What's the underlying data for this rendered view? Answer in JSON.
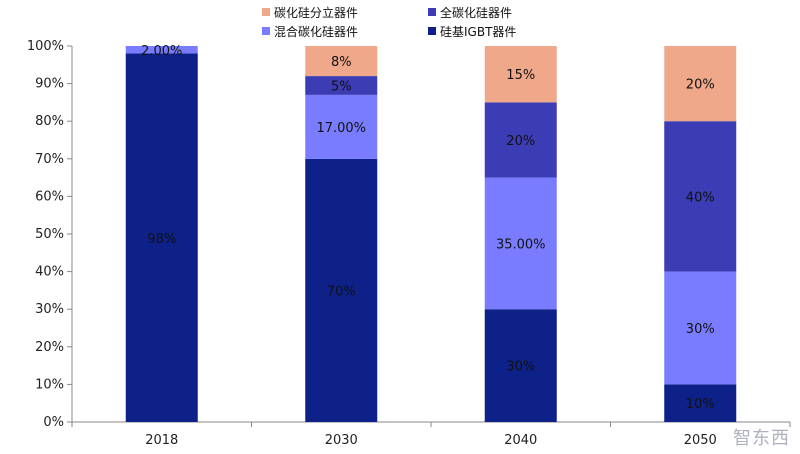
{
  "chart_data": {
    "type": "bar",
    "stacked": true,
    "categories": [
      "2018",
      "2030",
      "2040",
      "2050"
    ],
    "series": [
      {
        "name": "硅基IGBT器件",
        "color": "#0d2189",
        "values": [
          98,
          70,
          30,
          10
        ],
        "labels": [
          "98%",
          "70%",
          "30%",
          "10%"
        ]
      },
      {
        "name": "混合碳化硅器件",
        "color": "#7a7cff",
        "values": [
          2,
          17,
          35,
          30
        ],
        "labels": [
          "2.00%",
          "17.00%",
          "35.00%",
          "30%"
        ]
      },
      {
        "name": "全碳化硅器件",
        "color": "#3c3cb4",
        "values": [
          0,
          5,
          20,
          40
        ],
        "labels": [
          "",
          "5%",
          "20%",
          "40%"
        ]
      },
      {
        "name": "碳化硅分立器件",
        "color": "#f0a88a",
        "values": [
          0,
          8,
          15,
          20
        ],
        "labels": [
          "",
          "8%",
          "15%",
          "20%"
        ]
      }
    ],
    "ylim": [
      0,
      100
    ],
    "yticks": [
      "0%",
      "10%",
      "20%",
      "30%",
      "40%",
      "50%",
      "60%",
      "70%",
      "80%",
      "90%",
      "100%"
    ],
    "legend": {
      "placement": "top",
      "order": [
        "碳化硅分立器件",
        "全碳化硅器件",
        "混合碳化硅器件",
        "硅基IGBT器件"
      ]
    },
    "grid": false
  },
  "watermark": "智东西"
}
